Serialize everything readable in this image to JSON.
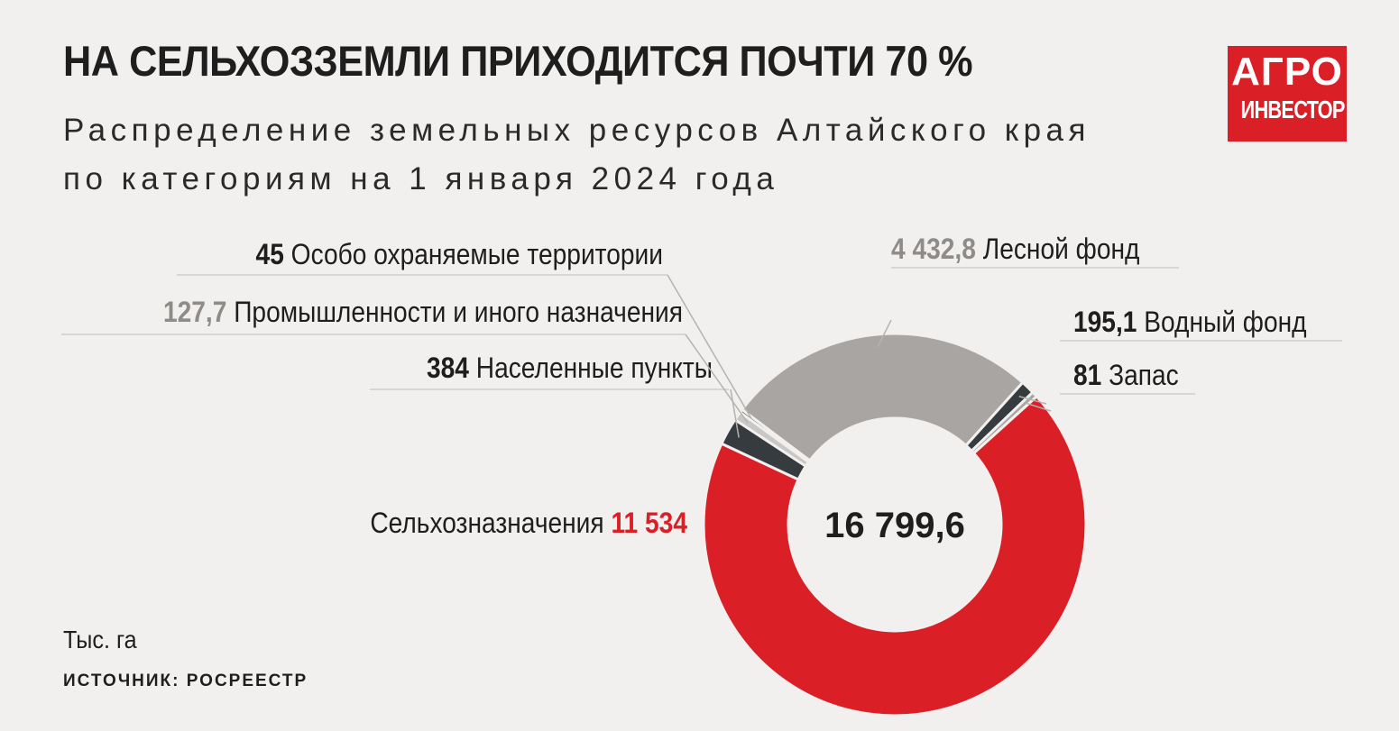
{
  "header": {
    "title": "НА СЕЛЬХОЗЗЕМЛИ ПРИХОДИТСЯ ПОЧТИ 70 %",
    "subtitle": "Распределение земельных ресурсов Алтайского края по категориям на 1 января 2024 года"
  },
  "logo": {
    "line1": "АГРО",
    "line2": "ИНВЕСТОР"
  },
  "footer": {
    "unit": "Тыс. га",
    "source": "ИСТОЧНИК: РОСРЕЕСТР"
  },
  "colors": {
    "background": "#f2f0ee",
    "accent_red": "#db1f27",
    "gray": "#a9a5a2",
    "dark": "#363b3f",
    "light_gray": "#c9c7c5",
    "value_gray": "#8e8b88"
  },
  "chart_data": {
    "type": "pie",
    "donut": true,
    "title": "НА СЕЛЬХОЗЗЕМЛИ ПРИХОДИТСЯ ПОЧТИ 70 %",
    "subtitle": "Распределение земельных ресурсов Алтайского края по категориям на 1 января 2024 года",
    "unit": "Тыс. га",
    "total_label": "16 799,6",
    "slices": [
      {
        "label": "Лесной фонд",
        "value": 4432.8,
        "value_label": "4 432,8",
        "color": "#a9a5a2",
        "value_color": "#8e8b88"
      },
      {
        "label": "Водный фонд",
        "value": 195.1,
        "value_label": "195,1",
        "color": "#363b3f",
        "value_color": "#1e1e1e"
      },
      {
        "label": "Запас",
        "value": 81,
        "value_label": "81",
        "color": "#a9a5a2",
        "value_color": "#1e1e1e"
      },
      {
        "label": "Сельхозназначения",
        "value": 11534,
        "value_label": "11 534",
        "color": "#db1f27",
        "value_color": "#db1f27"
      },
      {
        "label": "Населенные пункты",
        "value": 384,
        "value_label": "384",
        "color": "#363b3f",
        "value_color": "#1e1e1e"
      },
      {
        "label": "Промышленности и иного назначения",
        "value": 127.7,
        "value_label": "127,7",
        "color": "#c9c7c5",
        "value_color": "#8e8b88"
      },
      {
        "label": "Особо охраняемые территории",
        "value": 45,
        "value_label": "45",
        "color": "#363b3f",
        "value_color": "#1e1e1e"
      }
    ]
  }
}
